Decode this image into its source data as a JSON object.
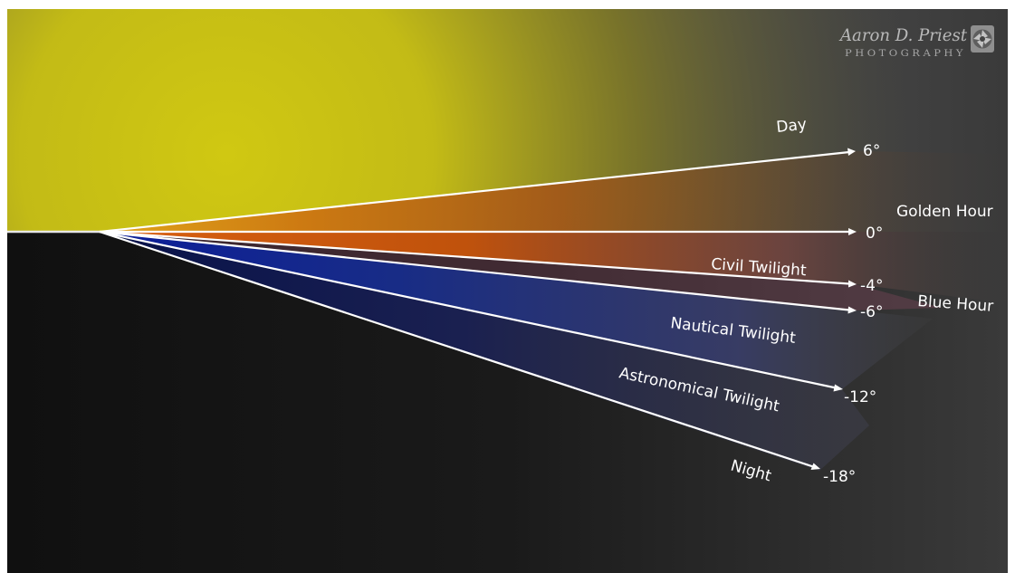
{
  "zones": {
    "day": "Day",
    "golden_hour": "Golden Hour",
    "civil_twilight": "Civil Twilight",
    "blue_hour": "Blue Hour",
    "nautical_twilight": "Nautical Twilight",
    "astronomical_twilight": "Astronomical Twilight",
    "night": "Night"
  },
  "angles": {
    "pos6": "6°",
    "zero": "0°",
    "neg4": "-4°",
    "neg6": "-6°",
    "neg12": "-12°",
    "neg18": "-18°"
  },
  "watermark": {
    "name": "Aaron D. Priest",
    "subtitle": "PHOTOGRAPHY"
  },
  "colors": {
    "day": "#cfc512",
    "golden": "#cc5a08",
    "blue_hour": "#1a2a8c",
    "night": "#111111",
    "background_right": "#3c3c3c"
  }
}
